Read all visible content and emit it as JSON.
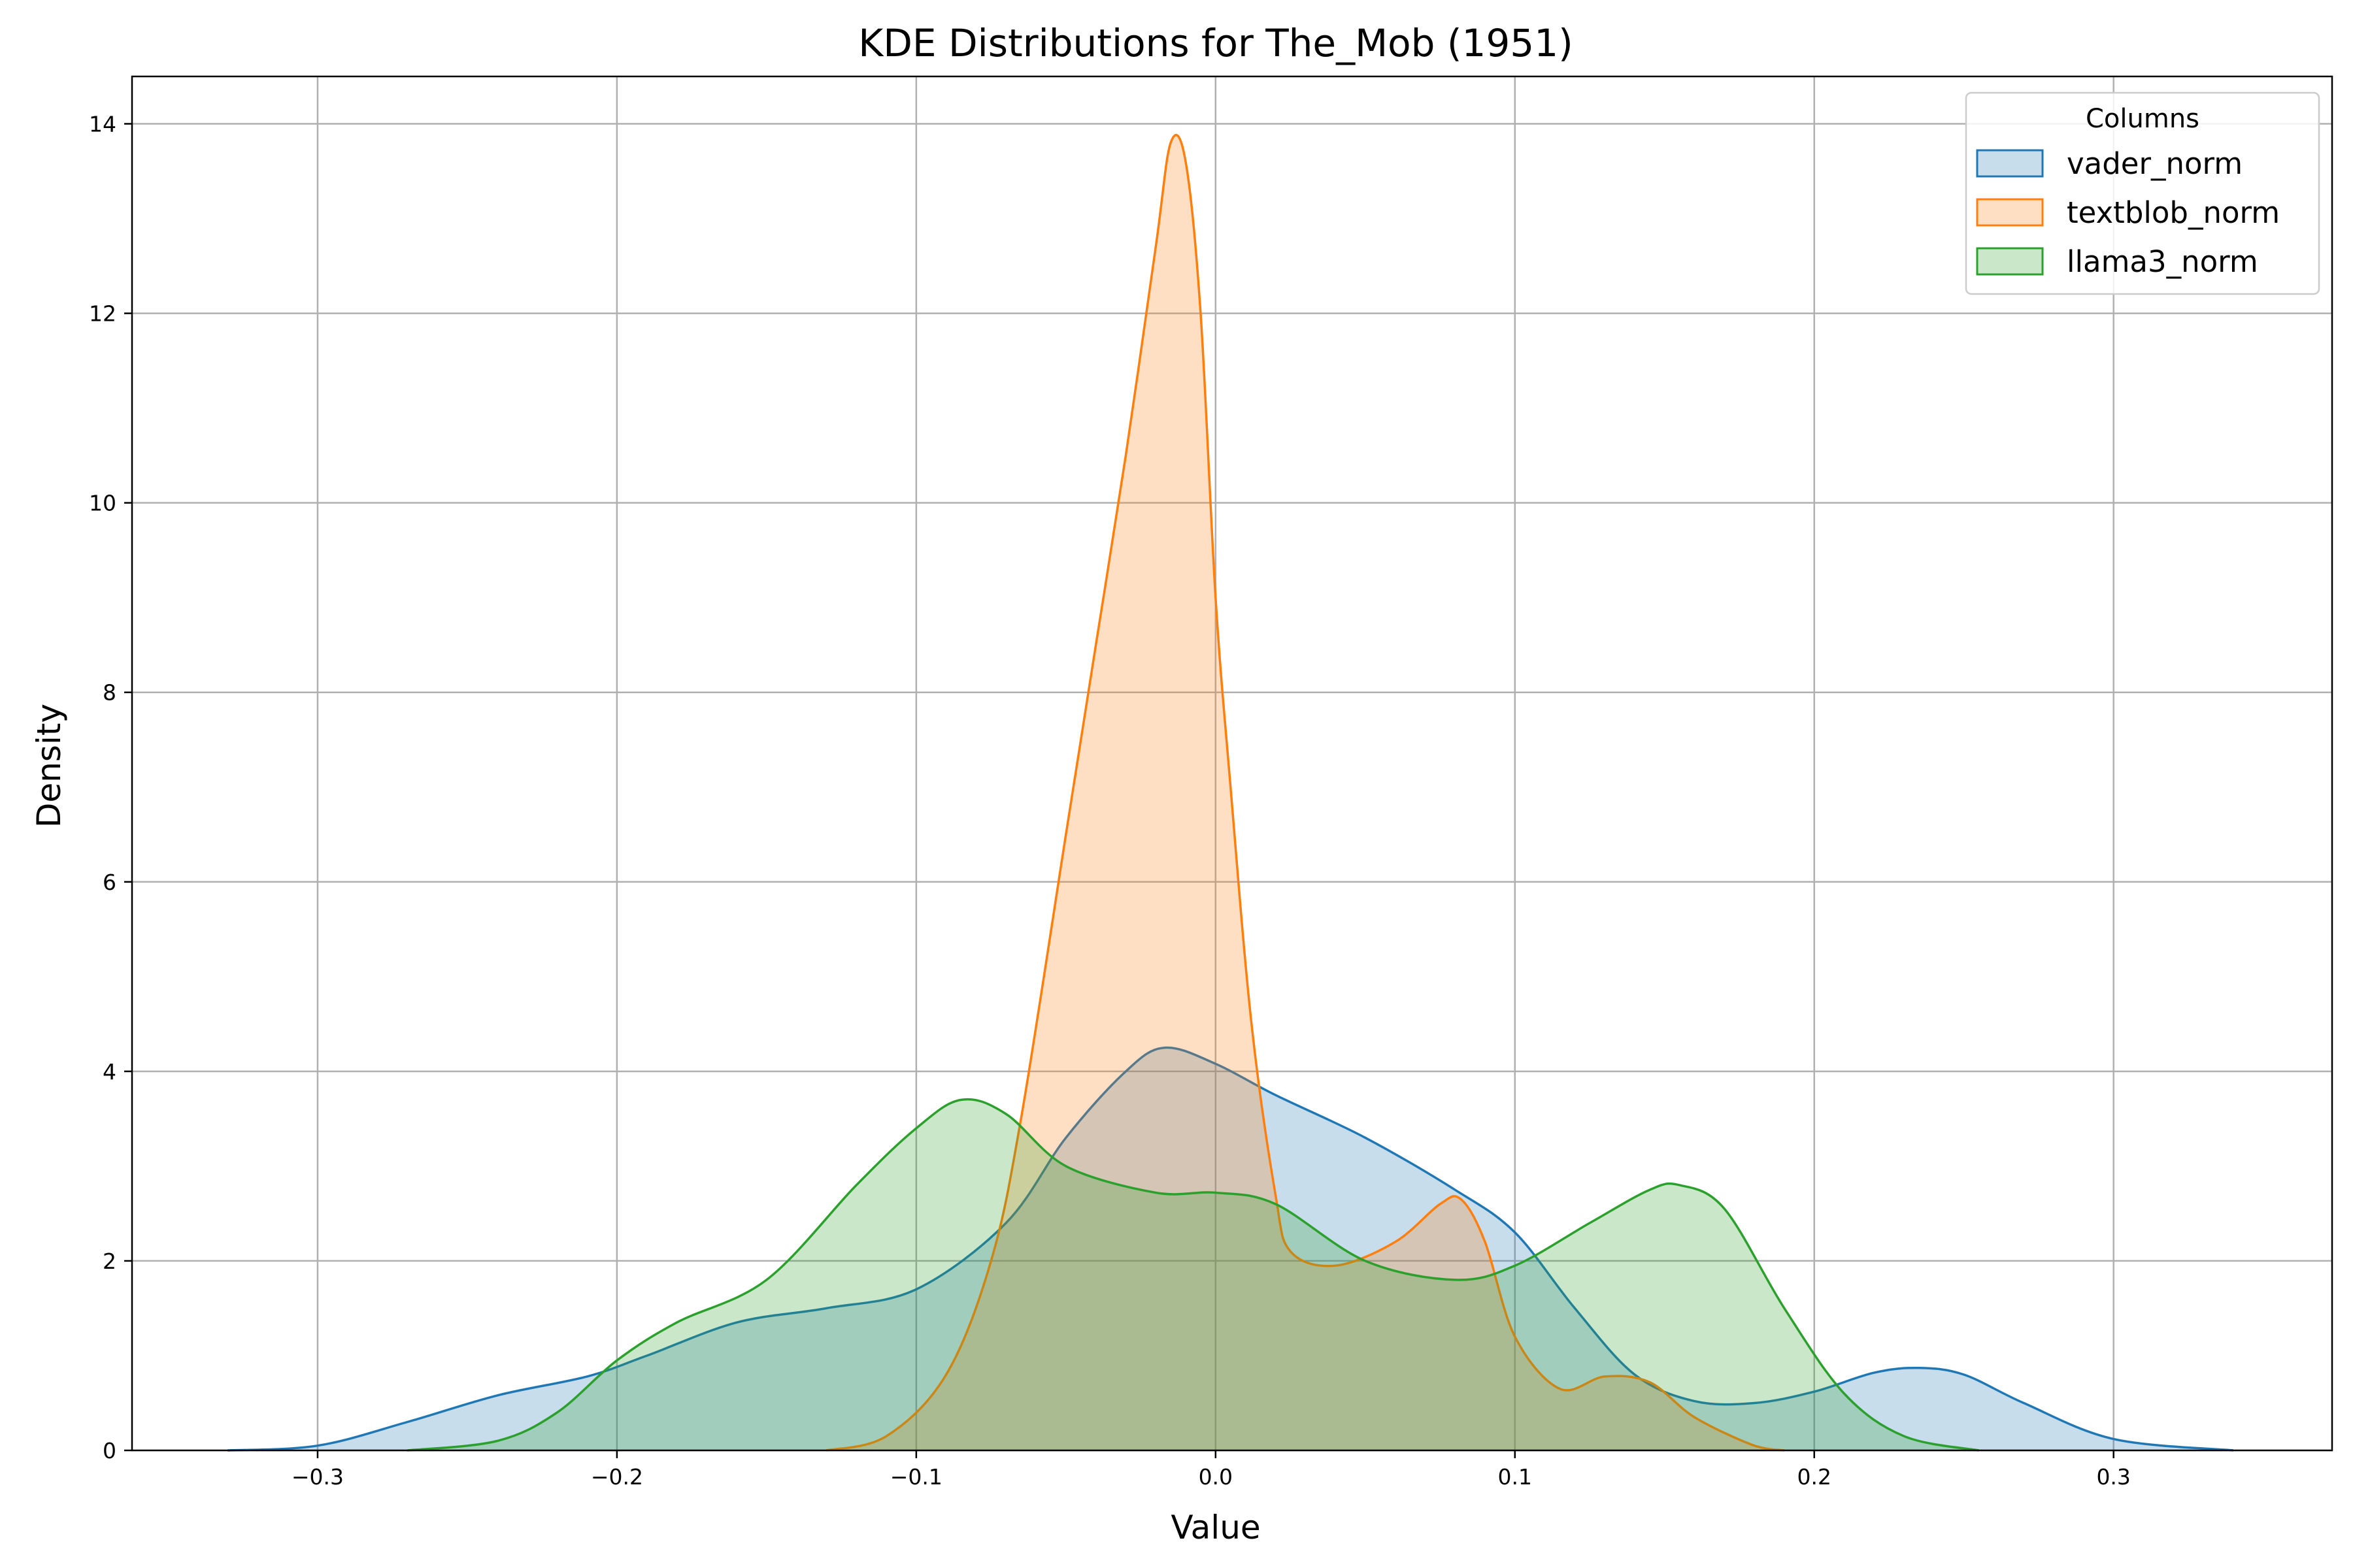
{
  "chart_data": {
    "type": "area",
    "title": "KDE Distributions for The_Mob (1951)",
    "xlabel": "Value",
    "ylabel": "Density",
    "xlim": [
      -0.362,
      0.373
    ],
    "ylim": [
      0,
      14.5
    ],
    "x_ticks": [
      -0.3,
      -0.2,
      -0.1,
      0.0,
      0.1,
      0.2,
      0.3
    ],
    "x_tick_labels": [
      "−0.3",
      "−0.2",
      "−0.1",
      "0.0",
      "0.1",
      "0.2",
      "0.3"
    ],
    "y_ticks": [
      0,
      2,
      4,
      6,
      8,
      10,
      12,
      14
    ],
    "y_tick_labels": [
      "0",
      "2",
      "4",
      "6",
      "8",
      "10",
      "12",
      "14"
    ],
    "grid": true,
    "legend": {
      "title": "Columns",
      "placement": "top-right"
    },
    "series": [
      {
        "name": "vader_norm",
        "color": "#1f77b4",
        "points": [
          [
            -0.33,
            0
          ],
          [
            -0.3,
            0.05
          ],
          [
            -0.27,
            0.3
          ],
          [
            -0.24,
            0.58
          ],
          [
            -0.21,
            0.78
          ],
          [
            -0.19,
            1.0
          ],
          [
            -0.16,
            1.35
          ],
          [
            -0.13,
            1.5
          ],
          [
            -0.1,
            1.7
          ],
          [
            -0.07,
            2.4
          ],
          [
            -0.05,
            3.3
          ],
          [
            -0.03,
            4.0
          ],
          [
            -0.017,
            4.25
          ],
          [
            0.0,
            4.08
          ],
          [
            0.02,
            3.75
          ],
          [
            0.05,
            3.3
          ],
          [
            0.08,
            2.75
          ],
          [
            0.1,
            2.3
          ],
          [
            0.12,
            1.5
          ],
          [
            0.14,
            0.8
          ],
          [
            0.16,
            0.52
          ],
          [
            0.18,
            0.5
          ],
          [
            0.2,
            0.62
          ],
          [
            0.22,
            0.82
          ],
          [
            0.235,
            0.87
          ],
          [
            0.25,
            0.8
          ],
          [
            0.27,
            0.5
          ],
          [
            0.3,
            0.12
          ],
          [
            0.34,
            0
          ]
        ]
      },
      {
        "name": "textblob_norm",
        "color": "#ff7f0e",
        "points": [
          [
            -0.13,
            0
          ],
          [
            -0.11,
            0.15
          ],
          [
            -0.09,
            0.8
          ],
          [
            -0.075,
            2.0
          ],
          [
            -0.065,
            3.5
          ],
          [
            -0.05,
            6.5
          ],
          [
            -0.04,
            8.5
          ],
          [
            -0.03,
            10.5
          ],
          [
            -0.02,
            12.7
          ],
          [
            -0.015,
            13.8
          ],
          [
            -0.01,
            13.6
          ],
          [
            -0.005,
            12.0
          ],
          [
            0.0,
            9.0
          ],
          [
            0.005,
            7.0
          ],
          [
            0.012,
            4.5
          ],
          [
            0.02,
            2.7
          ],
          [
            0.025,
            2.1
          ],
          [
            0.04,
            1.95
          ],
          [
            0.06,
            2.2
          ],
          [
            0.075,
            2.6
          ],
          [
            0.082,
            2.65
          ],
          [
            0.09,
            2.2
          ],
          [
            0.1,
            1.2
          ],
          [
            0.115,
            0.65
          ],
          [
            0.13,
            0.78
          ],
          [
            0.145,
            0.72
          ],
          [
            0.16,
            0.35
          ],
          [
            0.18,
            0.05
          ],
          [
            0.19,
            0
          ]
        ]
      },
      {
        "name": "llama3_norm",
        "color": "#2ca02c",
        "points": [
          [
            -0.27,
            0
          ],
          [
            -0.24,
            0.1
          ],
          [
            -0.22,
            0.4
          ],
          [
            -0.2,
            0.95
          ],
          [
            -0.18,
            1.35
          ],
          [
            -0.15,
            1.8
          ],
          [
            -0.12,
            2.8
          ],
          [
            -0.1,
            3.4
          ],
          [
            -0.085,
            3.7
          ],
          [
            -0.07,
            3.55
          ],
          [
            -0.05,
            3.0
          ],
          [
            -0.02,
            2.72
          ],
          [
            0.0,
            2.72
          ],
          [
            0.02,
            2.6
          ],
          [
            0.05,
            2.0
          ],
          [
            0.08,
            1.8
          ],
          [
            0.1,
            1.95
          ],
          [
            0.125,
            2.4
          ],
          [
            0.145,
            2.75
          ],
          [
            0.155,
            2.8
          ],
          [
            0.17,
            2.55
          ],
          [
            0.19,
            1.5
          ],
          [
            0.21,
            0.6
          ],
          [
            0.23,
            0.15
          ],
          [
            0.255,
            0
          ]
        ]
      }
    ]
  }
}
